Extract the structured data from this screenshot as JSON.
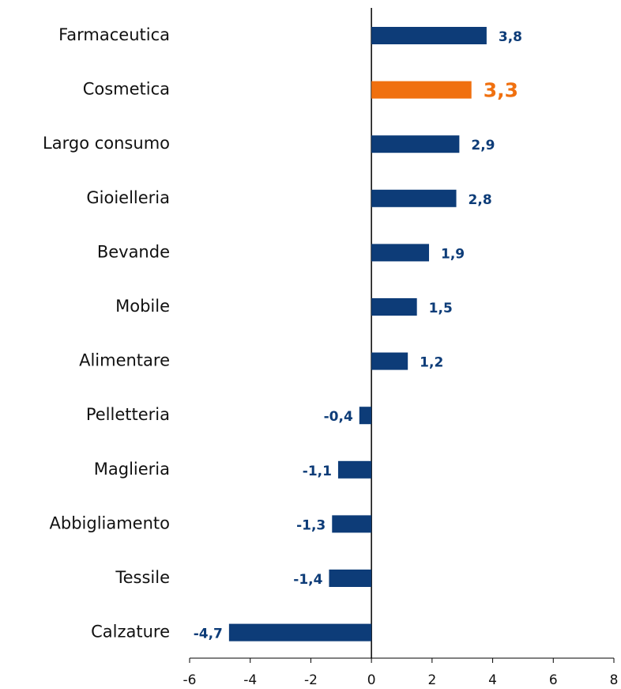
{
  "chart_data": {
    "type": "bar",
    "orientation": "horizontal",
    "categories": [
      "Farmaceutica",
      "Cosmetica",
      "Largo consumo",
      "Gioielleria",
      "Bevande",
      "Mobile",
      "Alimentare",
      "Pelletteria",
      "Maglieria",
      "Abbigliamento",
      "Tessile",
      "Calzature"
    ],
    "values": [
      3.8,
      3.3,
      2.9,
      2.8,
      1.9,
      1.5,
      1.2,
      -0.4,
      -1.1,
      -1.3,
      -1.4,
      -4.7
    ],
    "value_labels": [
      "3,8",
      "3,3",
      "2,9",
      "2,8",
      "1,9",
      "1,5",
      "1,2",
      "-0,4",
      "-1,1",
      "-1,3",
      "-1,4",
      "-4,7"
    ],
    "color": "#0d3c78",
    "colors": [
      "#0d3c78",
      "#f0700f",
      "#0d3c78",
      "#0d3c78",
      "#0d3c78",
      "#0d3c78",
      "#0d3c78",
      "#0d3c78",
      "#0d3c78",
      "#0d3c78",
      "#0d3c78",
      "#0d3c78"
    ],
    "xlim": [
      -6,
      8
    ],
    "xticks": [
      -6,
      -4,
      -2,
      0,
      2,
      4,
      6,
      8
    ],
    "grid": false
  }
}
